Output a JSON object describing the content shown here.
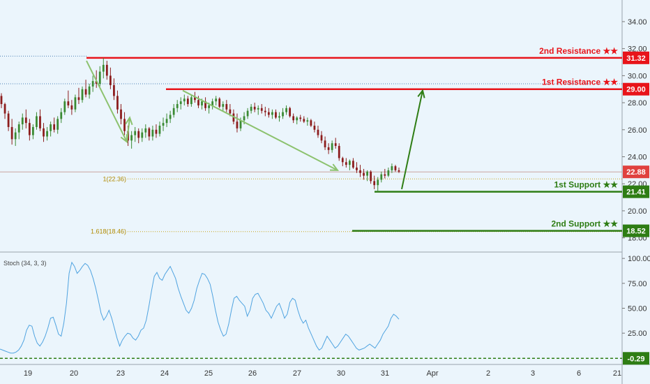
{
  "chart_data": [
    {
      "type": "candlestick",
      "y_ticks": [
        "34.00",
        "32.00",
        "30.00",
        "28.00",
        "26.00",
        "24.00",
        "22.00",
        "20.00",
        "18.00"
      ],
      "y_tick_values": [
        34,
        32,
        30,
        28,
        26,
        24,
        22,
        20,
        18
      ],
      "ylim": [
        17.0,
        35.6
      ],
      "x_ticks": [
        "19",
        "20",
        "23",
        "24",
        "25",
        "26",
        "27",
        "30",
        "31",
        "Apr",
        "2",
        "3",
        "6",
        "21"
      ],
      "current_price": {
        "value": 22.88,
        "label": "22.88",
        "color": "#e0423f"
      },
      "levels": [
        {
          "name": "2nd Resistance ★★",
          "value": 31.32,
          "label": "31.32",
          "color": "#e8141a",
          "kind": "resistance"
        },
        {
          "name": "1st Resistance ★★",
          "value": 29.0,
          "label": "29.00",
          "color": "#e8141a",
          "kind": "resistance"
        },
        {
          "name": "1st Support ★★",
          "value": 21.41,
          "label": "21.41",
          "color": "#2e7d14",
          "kind": "support"
        },
        {
          "name": "2nd Support ★★",
          "value": 18.52,
          "label": "18.52",
          "color": "#2e7d14",
          "kind": "support"
        }
      ],
      "fib_levels": [
        {
          "label": "1(22.36)",
          "value": 22.36
        },
        {
          "label": "1.618(18.46)",
          "value": 18.46
        }
      ],
      "dotted_highs": [
        31.45,
        29.4
      ],
      "candles_ohlc": [
        [
          28.5,
          28.7,
          27.6,
          27.9
        ],
        [
          27.9,
          28.0,
          26.8,
          27.2
        ],
        [
          27.2,
          27.4,
          25.9,
          26.2
        ],
        [
          26.2,
          26.8,
          24.9,
          25.3
        ],
        [
          25.3,
          26.1,
          24.8,
          25.8
        ],
        [
          25.8,
          26.6,
          25.3,
          26.4
        ],
        [
          26.4,
          27.2,
          26.0,
          26.9
        ],
        [
          26.9,
          27.5,
          26.1,
          26.5
        ],
        [
          26.5,
          26.8,
          25.2,
          25.6
        ],
        [
          25.6,
          26.4,
          25.3,
          26.2
        ],
        [
          26.2,
          27.3,
          26.0,
          27.0
        ],
        [
          27.0,
          27.5,
          25.9,
          26.1
        ],
        [
          26.1,
          26.5,
          25.1,
          25.5
        ],
        [
          25.5,
          26.2,
          25.2,
          25.9
        ],
        [
          25.9,
          26.6,
          25.5,
          26.4
        ],
        [
          26.4,
          26.9,
          25.8,
          26.0
        ],
        [
          26.0,
          27.0,
          25.7,
          26.8
        ],
        [
          26.8,
          27.6,
          26.5,
          27.3
        ],
        [
          27.3,
          28.3,
          27.1,
          28.1
        ],
        [
          28.1,
          28.9,
          27.6,
          27.8
        ],
        [
          27.8,
          28.2,
          27.1,
          27.5
        ],
        [
          27.5,
          28.6,
          27.3,
          28.4
        ],
        [
          28.4,
          29.1,
          27.9,
          28.2
        ],
        [
          28.2,
          29.2,
          28.0,
          29.0
        ],
        [
          29.0,
          29.7,
          28.4,
          28.6
        ],
        [
          28.6,
          29.4,
          28.3,
          29.2
        ],
        [
          29.2,
          30.0,
          28.8,
          29.6
        ],
        [
          29.6,
          30.4,
          29.1,
          29.4
        ],
        [
          29.4,
          30.7,
          29.2,
          30.3
        ],
        [
          30.3,
          31.3,
          29.8,
          30.8
        ],
        [
          30.8,
          31.1,
          29.7,
          30.0
        ],
        [
          30.0,
          30.6,
          29.0,
          29.3
        ],
        [
          29.3,
          29.8,
          28.2,
          28.5
        ],
        [
          28.5,
          28.9,
          27.2,
          27.5
        ],
        [
          27.5,
          27.9,
          26.4,
          26.8
        ],
        [
          26.8,
          27.3,
          25.6,
          25.9
        ],
        [
          25.9,
          26.3,
          24.8,
          25.2
        ],
        [
          25.2,
          25.9,
          24.6,
          25.6
        ],
        [
          25.6,
          26.2,
          25.1,
          25.9
        ],
        [
          25.9,
          26.1,
          25.0,
          25.4
        ],
        [
          25.4,
          26.1,
          25.1,
          25.8
        ],
        [
          25.8,
          26.4,
          25.4,
          26.1
        ],
        [
          26.1,
          26.2,
          25.2,
          25.5
        ],
        [
          25.5,
          26.3,
          25.2,
          26.0
        ],
        [
          26.0,
          26.4,
          25.4,
          25.7
        ],
        [
          25.7,
          26.6,
          25.5,
          26.3
        ],
        [
          26.3,
          26.9,
          25.9,
          26.5
        ],
        [
          26.5,
          27.2,
          26.2,
          26.8
        ],
        [
          26.8,
          27.4,
          26.5,
          27.1
        ],
        [
          27.1,
          27.9,
          26.9,
          27.6
        ],
        [
          27.6,
          28.2,
          27.3,
          27.9
        ],
        [
          27.9,
          28.4,
          27.5,
          28.1
        ],
        [
          28.1,
          28.6,
          27.8,
          28.3
        ],
        [
          28.3,
          28.5,
          27.7,
          27.9
        ],
        [
          27.9,
          28.6,
          27.7,
          28.4
        ],
        [
          28.4,
          28.8,
          28.0,
          28.2
        ],
        [
          28.2,
          28.5,
          27.6,
          27.8
        ],
        [
          27.8,
          28.3,
          27.5,
          28.1
        ],
        [
          28.1,
          28.4,
          27.4,
          27.6
        ],
        [
          27.6,
          28.0,
          27.2,
          27.8
        ],
        [
          27.8,
          28.3,
          27.5,
          28.1
        ],
        [
          28.1,
          28.5,
          27.8,
          28.3
        ],
        [
          28.3,
          28.4,
          27.6,
          27.7
        ],
        [
          27.7,
          28.1,
          27.4,
          27.9
        ],
        [
          27.9,
          28.2,
          27.3,
          27.5
        ],
        [
          27.5,
          27.9,
          27.0,
          27.2
        ],
        [
          27.2,
          27.5,
          26.4,
          26.6
        ],
        [
          26.6,
          27.2,
          25.8,
          26.1
        ],
        [
          26.1,
          26.9,
          25.9,
          26.7
        ],
        [
          26.7,
          27.3,
          26.4,
          27.0
        ],
        [
          27.0,
          27.6,
          26.8,
          27.4
        ],
        [
          27.4,
          27.9,
          27.2,
          27.7
        ],
        [
          27.7,
          28.0,
          27.3,
          27.5
        ],
        [
          27.5,
          27.8,
          27.1,
          27.6
        ],
        [
          27.6,
          27.9,
          27.2,
          27.4
        ],
        [
          27.4,
          27.7,
          27.0,
          27.3
        ],
        [
          27.3,
          27.6,
          26.9,
          27.1
        ],
        [
          27.1,
          27.5,
          26.8,
          27.3
        ],
        [
          27.3,
          27.5,
          26.8,
          26.9
        ],
        [
          26.9,
          27.3,
          26.6,
          27.0
        ],
        [
          27.0,
          27.6,
          26.8,
          27.3
        ],
        [
          27.3,
          27.8,
          27.1,
          27.6
        ],
        [
          27.6,
          27.7,
          26.9,
          27.0
        ],
        [
          27.0,
          27.2,
          26.5,
          26.7
        ],
        [
          26.7,
          27.0,
          26.4,
          26.9
        ],
        [
          26.9,
          27.1,
          26.6,
          26.8
        ],
        [
          26.8,
          27.0,
          26.5,
          26.6
        ],
        [
          26.6,
          26.9,
          26.3,
          26.7
        ],
        [
          26.7,
          26.8,
          26.2,
          26.3
        ],
        [
          26.3,
          26.6,
          25.8,
          26.0
        ],
        [
          26.0,
          26.3,
          25.4,
          25.6
        ],
        [
          25.6,
          25.9,
          25.0,
          25.2
        ],
        [
          25.2,
          25.5,
          24.5,
          24.7
        ],
        [
          24.7,
          25.0,
          24.2,
          24.5
        ],
        [
          24.5,
          25.2,
          24.3,
          25.0
        ],
        [
          25.0,
          25.4,
          24.6,
          24.8
        ],
        [
          24.8,
          25.0,
          23.7,
          23.9
        ],
        [
          23.9,
          24.0,
          23.3,
          23.6
        ],
        [
          23.6,
          23.9,
          23.2,
          23.4
        ],
        [
          23.4,
          23.8,
          23.0,
          23.7
        ],
        [
          23.7,
          23.9,
          23.1,
          23.2
        ],
        [
          23.2,
          23.6,
          22.8,
          23.0
        ],
        [
          23.0,
          23.4,
          22.5,
          22.8
        ],
        [
          22.8,
          23.1,
          22.3,
          22.6
        ],
        [
          22.6,
          23.0,
          22.2,
          22.9
        ],
        [
          22.9,
          23.0,
          22.0,
          22.2
        ],
        [
          22.2,
          22.6,
          21.6,
          21.9
        ],
        [
          21.9,
          22.5,
          21.4,
          22.3
        ],
        [
          22.3,
          22.9,
          22.1,
          22.7
        ],
        [
          22.7,
          23.1,
          22.4,
          22.6
        ],
        [
          22.6,
          23.2,
          22.5,
          23.0
        ],
        [
          23.0,
          23.5,
          22.8,
          23.3
        ],
        [
          23.3,
          23.4,
          22.9,
          23.0
        ],
        [
          23.0,
          23.2,
          22.8,
          22.9
        ]
      ],
      "arrows": [
        {
          "from": [
            22.5,
            31.1
          ],
          "to": [
            24.5,
            25.1
          ],
          "color": "#8cc26e"
        },
        {
          "from": [
            24.5,
            25.1
          ],
          "to": [
            24.8,
            26.9
          ],
          "color": "#8cc26e"
        },
        {
          "from": [
            24.4,
            28.9
          ],
          "to": [
            29.8,
            23.0
          ],
          "color": "#8cc26e"
        },
        {
          "from": [
            31.3,
            21.6
          ],
          "to": [
            32.4,
            28.9
          ],
          "color": "#2e7d14"
        }
      ]
    },
    {
      "type": "line",
      "title": "Stoch (34, 3, 3)",
      "y_ticks": [
        "100.00",
        "75.00",
        "50.00",
        "25.00"
      ],
      "y_tick_values": [
        100,
        75,
        50,
        25
      ],
      "ylim": [
        -5,
        105
      ],
      "current": {
        "value": -0.29,
        "label": "-0.29",
        "color": "#2e7d14"
      },
      "baseline": 0,
      "series": [
        {
          "color": "#4fa3e0",
          "values": [
            9,
            8,
            7,
            6,
            5,
            5,
            6,
            8,
            12,
            18,
            28,
            33,
            32,
            22,
            15,
            12,
            16,
            22,
            30,
            40,
            41,
            33,
            24,
            22,
            35,
            55,
            85,
            96,
            92,
            85,
            88,
            92,
            95,
            93,
            88,
            80,
            70,
            58,
            45,
            38,
            42,
            48,
            40,
            30,
            20,
            12,
            18,
            22,
            25,
            24,
            20,
            18,
            22,
            28,
            30,
            38,
            52,
            68,
            82,
            86,
            80,
            78,
            84,
            88,
            92,
            86,
            80,
            70,
            62,
            55,
            48,
            45,
            50,
            58,
            70,
            78,
            85,
            84,
            80,
            74,
            62,
            48,
            36,
            28,
            22,
            24,
            34,
            48,
            60,
            62,
            58,
            55,
            52,
            42,
            48,
            60,
            64,
            65,
            60,
            55,
            48,
            45,
            40,
            46,
            52,
            55,
            48,
            40,
            44,
            56,
            60,
            58,
            48,
            40,
            35,
            38,
            30,
            24,
            18,
            12,
            8,
            10,
            16,
            22,
            18,
            14,
            10,
            12,
            16,
            20,
            24,
            22,
            18,
            14,
            10,
            8,
            9,
            10,
            12,
            14,
            12,
            10,
            14,
            18,
            24,
            28,
            32,
            40,
            44,
            42,
            39
          ]
        }
      ]
    }
  ]
}
